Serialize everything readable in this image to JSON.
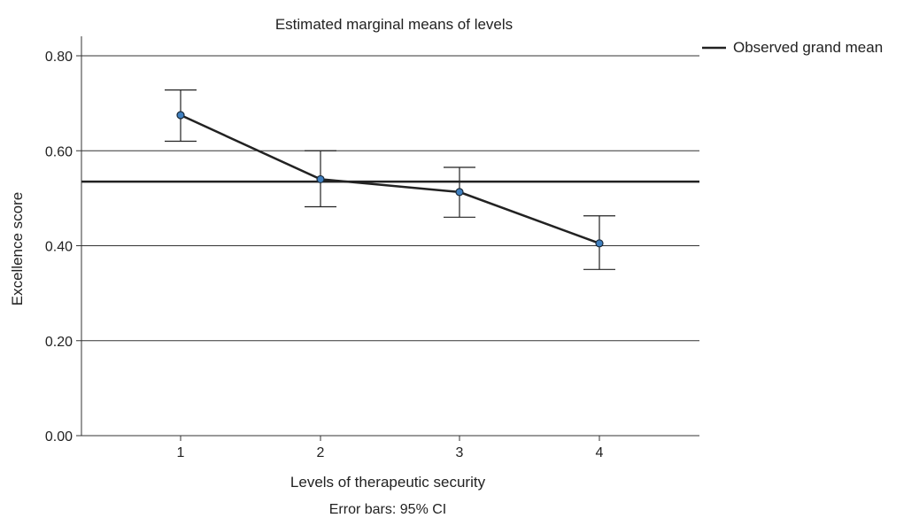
{
  "chart_data": {
    "type": "line",
    "title": "Estimated marginal means of levels",
    "xlabel": "Levels of therapeutic security",
    "ylabel": "Excellence score",
    "footnote": "Error bars: 95% CI",
    "categories": [
      "1",
      "2",
      "3",
      "4"
    ],
    "series": [
      {
        "values": [
          0.675,
          0.54,
          0.513,
          0.405
        ],
        "ci_lower": [
          0.62,
          0.482,
          0.46,
          0.35
        ],
        "ci_upper": [
          0.728,
          0.6,
          0.565,
          0.463
        ],
        "color": "#3f7fbf"
      }
    ],
    "reference_line": {
      "name": "Observed grand mean",
      "value": 0.535
    },
    "ylim": [
      0,
      0.8
    ],
    "yticks": [
      "0.00",
      "0.20",
      "0.40",
      "0.60",
      "0.80"
    ],
    "grid": true,
    "legend_position": "top-right"
  }
}
